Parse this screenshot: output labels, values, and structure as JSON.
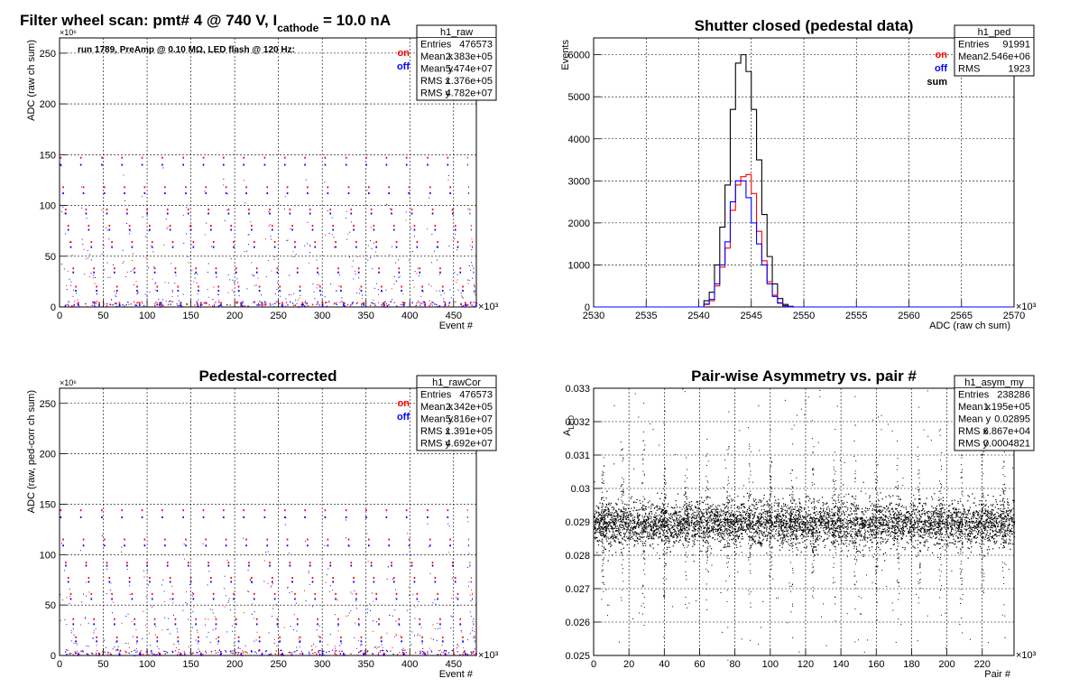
{
  "main_title": {
    "prefix": "Filter wheel scan: pmt#   4 @   740 V, I",
    "subscript": "cathode",
    "suffix": "  = 10.0 nA"
  },
  "colors": {
    "on": "#ff0000",
    "off": "#0000ff",
    "sum": "#000000",
    "grid": "#000000"
  },
  "legend": {
    "on": "on",
    "off": "off",
    "sum": "sum"
  },
  "chart_data": [
    {
      "id": "raw",
      "type": "scatter",
      "title": "",
      "subtitle": "run 1789, PreAmp @ 0.10 MΩ, LED flash @  120 Hz:",
      "xlabel": "Event #",
      "ylabel": "ADC (raw ch sum)",
      "x_exponent": "×10³",
      "y_exponent": "×10⁶",
      "xlim": [
        0,
        476
      ],
      "ylim": [
        0,
        265
      ],
      "xticks": [
        0,
        50,
        100,
        150,
        200,
        250,
        300,
        350,
        400,
        450
      ],
      "yticks": [
        0,
        50,
        100,
        150,
        200,
        250
      ],
      "grid": true,
      "step_events": [
        0,
        23,
        47,
        70,
        93,
        116,
        140,
        163,
        186,
        209,
        233,
        256,
        279,
        302,
        326,
        349,
        372,
        395,
        419,
        442,
        465
      ],
      "levels": [
        {
          "on": 147,
          "off": 140
        },
        {
          "on": 118,
          "off": 112
        },
        {
          "on": 96,
          "off": 92
        },
        {
          "on": 80,
          "off": 76
        },
        {
          "on": 64,
          "off": 59
        },
        {
          "on": 38,
          "off": 34
        },
        {
          "on": 20,
          "off": 16
        },
        {
          "on": 4,
          "off": 2
        }
      ],
      "stats": {
        "name": "h1_raw",
        "rows": [
          [
            "Entries",
            "476573"
          ],
          [
            "Mean x",
            "2.383e+05"
          ],
          [
            "Mean y",
            "5.474e+07"
          ],
          [
            "RMS x",
            "1.376e+05"
          ],
          [
            "RMS y",
            "4.782e+07"
          ]
        ]
      }
    },
    {
      "id": "ped",
      "type": "line",
      "title": "Shutter closed (pedestal data)",
      "xlabel": "ADC (raw ch sum)",
      "ylabel": "Events",
      "x_exponent": "×10³",
      "xlim": [
        2530,
        2570
      ],
      "ylim": [
        0,
        6400
      ],
      "xticks": [
        2530,
        2535,
        2540,
        2545,
        2550,
        2555,
        2560,
        2565,
        2570
      ],
      "yticks": [
        0,
        1000,
        2000,
        3000,
        4000,
        5000,
        6000
      ],
      "grid": true,
      "bin_width": 0.5,
      "x_start": 2540.5,
      "series": [
        {
          "name": "sum",
          "values": [
            150,
            350,
            1000,
            1900,
            2900,
            4700,
            5800,
            6000,
            5600,
            4700,
            3500,
            2200,
            1200,
            550,
            200,
            60,
            15
          ]
        },
        {
          "name": "on",
          "values": [
            60,
            150,
            500,
            950,
            1400,
            2300,
            2900,
            3100,
            3150,
            2700,
            1800,
            1100,
            600,
            280,
            100,
            30,
            8
          ]
        },
        {
          "name": "off",
          "values": [
            70,
            180,
            550,
            1000,
            1550,
            2500,
            3000,
            3000,
            2600,
            2000,
            1500,
            1000,
            550,
            250,
            90,
            28,
            7
          ]
        }
      ],
      "stats": {
        "name": "h1_ped",
        "rows": [
          [
            "Entries",
            "91991"
          ],
          [
            "Mean",
            "2.546e+06"
          ],
          [
            "RMS",
            "1923"
          ]
        ]
      }
    },
    {
      "id": "rawCor",
      "type": "scatter",
      "title": "Pedestal-corrected",
      "xlabel": "Event #",
      "ylabel": "ADC (raw, ped-corr ch sum)",
      "x_exponent": "×10³",
      "y_exponent": "×10⁶",
      "xlim": [
        0,
        476
      ],
      "ylim": [
        0,
        265
      ],
      "xticks": [
        0,
        50,
        100,
        150,
        200,
        250,
        300,
        350,
        400,
        450
      ],
      "yticks": [
        0,
        50,
        100,
        150,
        200,
        250
      ],
      "grid": true,
      "step_events": [
        0,
        23,
        47,
        70,
        93,
        116,
        140,
        163,
        186,
        209,
        233,
        256,
        279,
        302,
        326,
        349,
        372,
        395,
        419,
        442,
        465
      ],
      "levels": [
        {
          "on": 144,
          "off": 137
        },
        {
          "on": 115,
          "off": 109
        },
        {
          "on": 92,
          "off": 89
        },
        {
          "on": 77,
          "off": 73
        },
        {
          "on": 61,
          "off": 56
        },
        {
          "on": 36,
          "off": 31
        },
        {
          "on": 18,
          "off": 14
        },
        {
          "on": 2,
          "off": 1
        }
      ],
      "stats": {
        "name": "h1_rawCor",
        "rows": [
          [
            "Entries",
            "476573"
          ],
          [
            "Mean x",
            "2.342e+05"
          ],
          [
            "Mean y",
            "5.816e+07"
          ],
          [
            "RMS x",
            "1.391e+05"
          ],
          [
            "RMS y",
            "4.692e+07"
          ]
        ]
      }
    },
    {
      "id": "asym",
      "type": "scatter",
      "title": "Pair-wise Asymmetry vs. pair #",
      "xlabel": "Pair #",
      "ylabel_main": "A",
      "ylabel_sub": "LED",
      "x_exponent": "×10³",
      "xlim": [
        0,
        238
      ],
      "ylim": [
        0.025,
        0.033
      ],
      "xticks": [
        0,
        20,
        40,
        60,
        80,
        100,
        120,
        140,
        160,
        180,
        200,
        220
      ],
      "yticks": [
        0.025,
        0.026,
        0.027,
        0.028,
        0.029,
        0.03,
        0.031,
        0.032,
        0.033
      ],
      "ytick_labels": [
        "0.025",
        "0.026",
        "0.027",
        "0.028",
        "0.029",
        "0.03",
        "0.031",
        "0.032",
        "0.033"
      ],
      "grid": true,
      "band_center": 0.02895,
      "band_halfwidth": 0.0006,
      "spike_pairs": [
        5,
        16,
        28,
        40,
        52,
        64,
        76,
        88,
        100,
        112,
        124,
        136,
        148,
        160,
        172,
        184,
        196,
        208,
        220,
        232
      ],
      "stats": {
        "name": "h1_asym_my",
        "rows": [
          [
            "Entries",
            "238286"
          ],
          [
            "Mean x",
            "1.195e+05"
          ],
          [
            "Mean y",
            "0.02895"
          ],
          [
            "RMS x",
            "6.867e+04"
          ],
          [
            "RMS y",
            "0.0004821"
          ]
        ]
      }
    }
  ]
}
